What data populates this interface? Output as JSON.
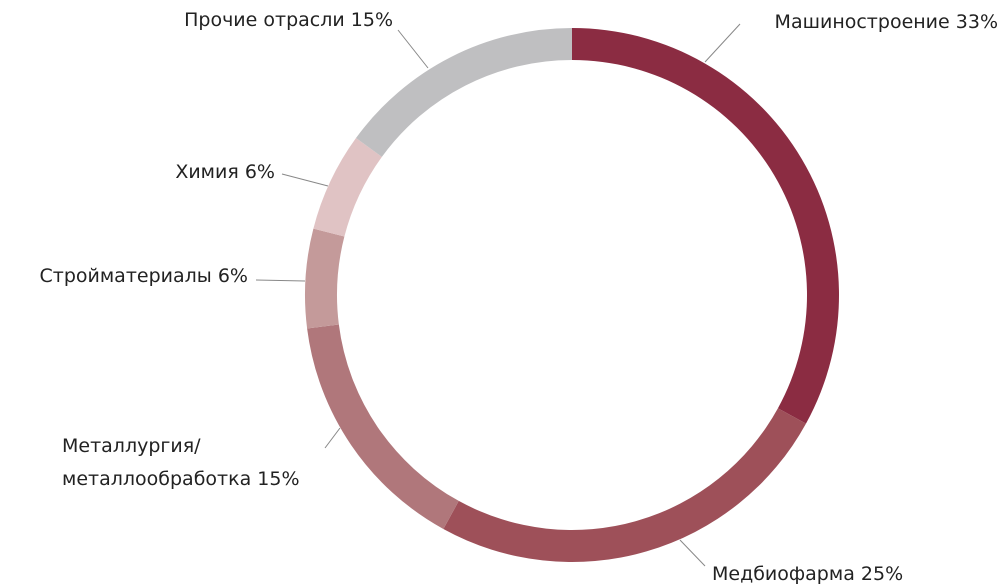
{
  "chart_data": {
    "type": "donut",
    "categories": [
      "Машиностроение",
      "Медбиофарма",
      "Металлургия/\nметаллообработка",
      "Стройматериалы",
      "Химия",
      "Прочие отрасли"
    ],
    "values": [
      33,
      25,
      15,
      6,
      6,
      15
    ],
    "value_labels": [
      "33%",
      "25%",
      "15%",
      "6%",
      "6%",
      "15%"
    ],
    "colors": [
      "#8b2c42",
      "#9e5059",
      "#b0777b",
      "#c49a9a",
      "#e0c3c4",
      "#bfbfc1"
    ]
  }
}
